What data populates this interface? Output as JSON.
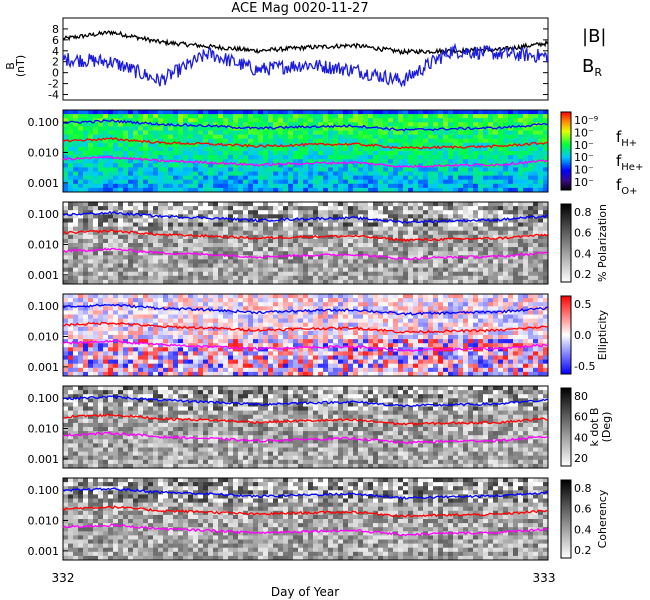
{
  "title": "ACE Mag 0020-11-27",
  "xlabel": "Day of Year",
  "x_ticks": [
    "332",
    "333"
  ],
  "colors": {
    "total": "#000000",
    "radial": "#1c1cdc",
    "h": "#0000ff",
    "he": "#ff0000",
    "o": "#ff00ff"
  },
  "chart_data": [
    {
      "type": "line",
      "ylabel": "B",
      "yunit": "(nT)",
      "ylim": [
        -5,
        10
      ],
      "y_ticks": [
        "8",
        "6",
        "4",
        "2",
        "0",
        "-2",
        "-4"
      ],
      "legend": [
        {
          "base": "|B|",
          "sub": "",
          "color": "#000000"
        },
        {
          "base": "B",
          "sub": "R",
          "color": "#1c1cdc"
        }
      ],
      "x": [
        332.0,
        332.1,
        332.2,
        332.3,
        332.4,
        332.5,
        332.6,
        332.7,
        332.8,
        332.9,
        333.0
      ],
      "series": [
        {
          "name": "|B|",
          "values": [
            6.2,
            7.4,
            5.6,
            4.8,
            4.0,
            4.6,
            5.0,
            3.8,
            4.0,
            4.2,
            5.4
          ]
        },
        {
          "name": "B_R",
          "values": [
            2.5,
            2.0,
            -1.5,
            3.5,
            0.5,
            1.5,
            0.5,
            -1.5,
            4.0,
            3.5,
            3.0
          ]
        }
      ]
    },
    {
      "type": "heatmap",
      "colorbar_label": "",
      "colorbar_ticks": [
        "10⁻⁹",
        "10⁻",
        "10⁻",
        "10⁻",
        "10⁻",
        "10⁻"
      ],
      "colormap": "rainbow",
      "y_ticks": [
        "0.100",
        "0.010",
        "0.001"
      ],
      "legend": [
        {
          "base": "f",
          "sub": "H+",
          "color": "#0000ff"
        },
        {
          "base": "f",
          "sub": "He+",
          "color": "#ff0000"
        },
        {
          "base": "f",
          "sub": "O+",
          "color": "#ff00ff"
        }
      ]
    },
    {
      "type": "heatmap",
      "colorbar_label": "% Polarization",
      "colorbar_ticks": [
        "0.8",
        "0.6",
        "0.4",
        "0.2"
      ],
      "colormap": "gray",
      "y_ticks": [
        "0.100",
        "0.010",
        "0.001"
      ]
    },
    {
      "type": "heatmap",
      "colorbar_label": "Ellipticity",
      "colorbar_ticks": [
        "0.5",
        "0.0",
        "-0.5"
      ],
      "colormap": "bwr",
      "y_ticks": [
        "0.100",
        "0.010",
        "0.001"
      ]
    },
    {
      "type": "heatmap",
      "colorbar_label": "k dot B",
      "colorbar_unit": "(Deg)",
      "colorbar_ticks": [
        "80",
        "60",
        "40",
        "20"
      ],
      "colormap": "gray",
      "y_ticks": [
        "0.100",
        "0.010",
        "0.001"
      ]
    },
    {
      "type": "heatmap",
      "colorbar_label": "Coherency",
      "colorbar_ticks": [
        "0.8",
        "0.6",
        "0.4",
        "0.2"
      ],
      "colormap": "gray",
      "y_ticks": [
        "0.100",
        "0.010",
        "0.001"
      ]
    }
  ],
  "gyro_lines": {
    "x": [
      332.0,
      332.1,
      332.2,
      332.3,
      332.4,
      332.5,
      332.6,
      332.7,
      332.8,
      332.9,
      333.0
    ],
    "f_H": [
      0.095,
      0.11,
      0.085,
      0.075,
      0.062,
      0.07,
      0.075,
      0.055,
      0.06,
      0.065,
      0.085
    ],
    "f_He": [
      0.024,
      0.028,
      0.021,
      0.019,
      0.016,
      0.018,
      0.019,
      0.014,
      0.015,
      0.016,
      0.021
    ],
    "f_O": [
      0.006,
      0.007,
      0.0053,
      0.0047,
      0.0039,
      0.0044,
      0.0047,
      0.0034,
      0.0038,
      0.004,
      0.0053
    ]
  }
}
